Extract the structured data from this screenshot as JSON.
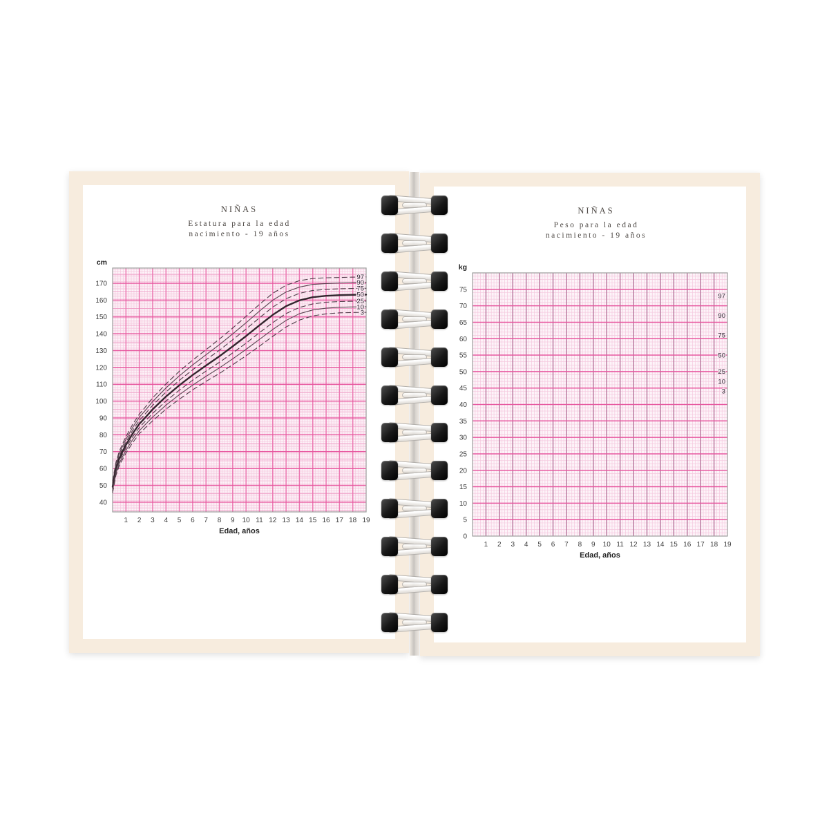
{
  "notebook": {
    "background": "#ffffff",
    "page_color": "#f7ecde",
    "sheet_color": "#ffffff",
    "spine_color": "#c6c2bd",
    "binding": {
      "rings": 12,
      "cap_color": "#1d1d1d",
      "wire_color": "#ffffff",
      "wire_edge": "#b3b0ac"
    }
  },
  "left_page": {
    "title": "NIÑAS",
    "subtitle": "Estatura para la edad",
    "range_line": "nacimiento - 19 años"
  },
  "right_page": {
    "title": "NIÑAS",
    "subtitle": "Peso para la edad",
    "range_line": "nacimiento - 19 años"
  },
  "chart_data": [
    {
      "id": "stature-for-age",
      "type": "line",
      "title": "Estatura para la edad",
      "subtitle": "nacimiento - 19 años",
      "sex": "Niñas",
      "unit_label": "cm",
      "xlabel": "Edad, años",
      "xlim": [
        0,
        19
      ],
      "ylim": [
        34.2,
        179
      ],
      "x_ticks": [
        1,
        2,
        3,
        4,
        5,
        6,
        7,
        8,
        9,
        10,
        11,
        12,
        13,
        14,
        15,
        16,
        17,
        18,
        19
      ],
      "y_ticks": [
        40,
        50,
        60,
        70,
        80,
        90,
        100,
        110,
        120,
        130,
        140,
        150,
        160,
        170
      ],
      "grid": {
        "x_minor": 0.2,
        "x_major": 1,
        "y_minor": 1,
        "y_medium": 5,
        "y_major": 10
      },
      "grid_colors": {
        "minor": "#f5c8de",
        "medium": "#efa2c9",
        "major_h": "#e7579f",
        "major_v": "#ec79b2",
        "border": "#9b9b9b"
      },
      "curve_colors": {
        "bold": "#33262e",
        "solid": "#5a4652",
        "dashed": "#4f3b48"
      },
      "axis_text_color": "#3a3a3a",
      "legend_position": "right-inside",
      "x": [
        0,
        0.25,
        0.5,
        0.75,
        1,
        1.5,
        2,
        2.5,
        3,
        4,
        5,
        6,
        7,
        8,
        9,
        10,
        11,
        12,
        13,
        14,
        15,
        16,
        17,
        18,
        19
      ],
      "series": [
        {
          "name": "97",
          "style": "dashed",
          "values": [
            52.6,
            63.7,
            70.2,
            74.7,
            78.9,
            86.1,
            92.2,
            96.9,
            101.9,
            110.2,
            117.7,
            124.3,
            130.5,
            136.8,
            143.4,
            150.3,
            157.4,
            164.0,
            168.8,
            171.5,
            172.8,
            173.2,
            173.4,
            173.6,
            173.7
          ]
        },
        {
          "name": "90",
          "style": "solid",
          "values": [
            51.5,
            62.5,
            68.8,
            73.2,
            77.3,
            84.3,
            90.4,
            94.9,
            99.7,
            107.8,
            115.0,
            121.5,
            127.5,
            133.5,
            139.9,
            146.5,
            153.4,
            159.9,
            164.8,
            167.7,
            169.3,
            169.8,
            170.1,
            170.3,
            170.4
          ]
        },
        {
          "name": "75",
          "style": "dashed",
          "values": [
            50.3,
            61.2,
            67.4,
            71.7,
            75.7,
            82.6,
            88.5,
            92.9,
            97.5,
            105.4,
            112.3,
            118.6,
            124.5,
            130.2,
            136.4,
            142.8,
            149.4,
            155.8,
            160.8,
            164.0,
            165.7,
            166.3,
            166.7,
            166.9,
            167.0
          ]
        },
        {
          "name": "50",
          "style": "bold",
          "values": [
            49.1,
            59.8,
            65.9,
            70.1,
            74.0,
            80.7,
            86.4,
            90.7,
            95.1,
            102.7,
            109.4,
            115.5,
            121.1,
            126.6,
            132.5,
            138.6,
            145.0,
            151.2,
            156.4,
            159.8,
            161.7,
            162.5,
            162.9,
            163.1,
            163.2
          ]
        },
        {
          "name": "25",
          "style": "dashed",
          "values": [
            47.9,
            58.4,
            64.4,
            68.5,
            72.3,
            78.8,
            84.3,
            88.5,
            92.7,
            100.0,
            106.5,
            112.4,
            117.8,
            123.0,
            128.6,
            134.4,
            140.6,
            146.6,
            152.0,
            155.6,
            157.7,
            158.7,
            159.1,
            159.3,
            159.4
          ]
        },
        {
          "name": "10",
          "style": "solid",
          "values": [
            46.7,
            57.1,
            63.0,
            67.0,
            70.7,
            77.1,
            82.4,
            86.5,
            90.5,
            97.6,
            103.8,
            109.5,
            114.7,
            119.7,
            125.1,
            130.7,
            136.6,
            142.5,
            147.9,
            151.9,
            154.1,
            155.2,
            155.7,
            155.9,
            156.0
          ]
        },
        {
          "name": "3",
          "style": "dashed",
          "values": [
            45.6,
            55.9,
            61.6,
            65.5,
            69.1,
            75.3,
            80.6,
            84.5,
            88.3,
            95.2,
            101.1,
            106.7,
            111.7,
            116.4,
            121.6,
            126.9,
            132.6,
            138.4,
            144.0,
            148.1,
            150.6,
            151.8,
            152.4,
            152.6,
            152.7
          ]
        }
      ]
    },
    {
      "id": "weight-for-age",
      "type": "line",
      "title": "Peso para la edad",
      "subtitle": "nacimiento - 19 años",
      "sex": "Niñas",
      "unit_label": "kg",
      "xlabel": "Edad, años",
      "xlim": [
        0,
        19
      ],
      "ylim": [
        0,
        80
      ],
      "x_ticks": [
        1,
        2,
        3,
        4,
        5,
        6,
        7,
        8,
        9,
        10,
        11,
        12,
        13,
        14,
        15,
        16,
        17,
        18,
        19
      ],
      "y_ticks": [
        0,
        5,
        10,
        15,
        20,
        25,
        30,
        35,
        40,
        45,
        50,
        55,
        60,
        65,
        70,
        75
      ],
      "grid": {
        "x_minor": 0.2,
        "x_major": 1,
        "y_minor": 1,
        "y_medium": null,
        "y_major": 5
      },
      "grid_colors": {
        "minor": "#f5c8de",
        "medium": "#efa2c9",
        "major_h": "#e7579f",
        "major_v": "#bb7aa0",
        "border": "#9b9b9b"
      },
      "curve_colors": {
        "bold": "#33262e",
        "solid": "#5a4652",
        "dashed": "#4f3b48"
      },
      "axis_text_color": "#3a3a3a",
      "legend_position": "right-inside",
      "x": [],
      "series": [],
      "percentile_labels": [
        {
          "label": "97",
          "value": 73
        },
        {
          "label": "90",
          "value": 67
        },
        {
          "label": "75",
          "value": 61
        },
        {
          "label": "50",
          "value": 55
        },
        {
          "label": "25",
          "value": 50
        },
        {
          "label": "10",
          "value": 47
        },
        {
          "label": "3",
          "value": 44
        }
      ]
    }
  ]
}
